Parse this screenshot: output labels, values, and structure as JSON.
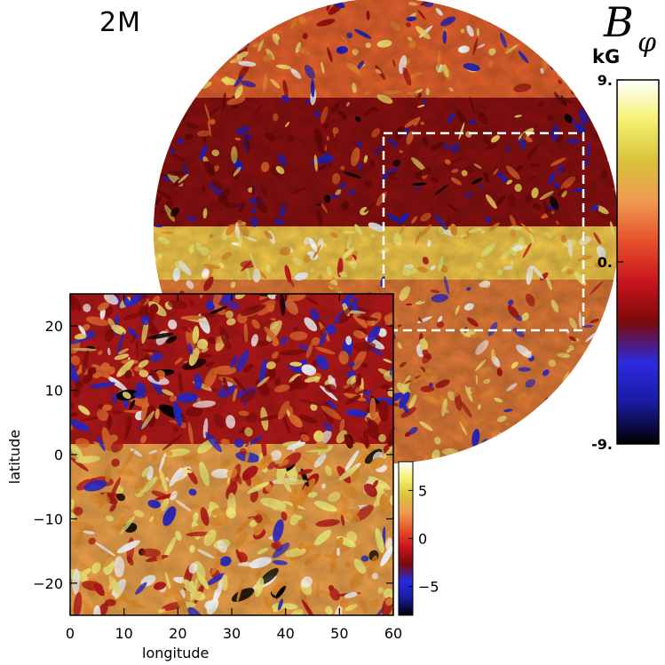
{
  "header": {
    "model_label": "2M",
    "quantity_symbol": "B",
    "quantity_subscript": "φ",
    "unit": "kG"
  },
  "colors": {
    "colormap": [
      "#000000",
      "#1a1aa0",
      "#2a2ae0",
      "#7a0a0a",
      "#c8141e",
      "#e6502a",
      "#f09a50",
      "#d8c23a",
      "#f4f070",
      "#ffffff"
    ],
    "highlight_box": "#ffffff"
  },
  "chart_data": [
    {
      "type": "heatmap",
      "name": "globe",
      "title": "2M",
      "colorbar": {
        "label": "B_φ",
        "unit": "kG",
        "range": [
          -9,
          9
        ],
        "tick_labels": [
          "9.",
          "0.",
          "-9."
        ],
        "tick_values": [
          9,
          0,
          -9
        ]
      },
      "highlight_region": {
        "longitude_range": [
          0,
          60
        ],
        "latitude_range": [
          -25,
          25
        ],
        "style": "white dashed"
      }
    },
    {
      "type": "heatmap",
      "name": "inset",
      "xlabel": "longitude",
      "ylabel": "latitude",
      "xlim": [
        0,
        60
      ],
      "ylim": [
        -25,
        25
      ],
      "x_ticks": [
        0,
        10,
        20,
        30,
        40,
        50,
        60
      ],
      "y_ticks": [
        -20,
        -10,
        0,
        10,
        20
      ],
      "x_tick_labels": [
        "0",
        "10",
        "20",
        "30",
        "40",
        "50",
        "60"
      ],
      "y_tick_labels": [
        "−20",
        "−10",
        "0",
        "10",
        "20"
      ],
      "colorbar": {
        "range": [
          -8,
          8
        ],
        "tick_values": [
          5,
          0,
          -5
        ],
        "tick_labels": [
          "5",
          "0",
          "−5"
        ]
      }
    }
  ]
}
